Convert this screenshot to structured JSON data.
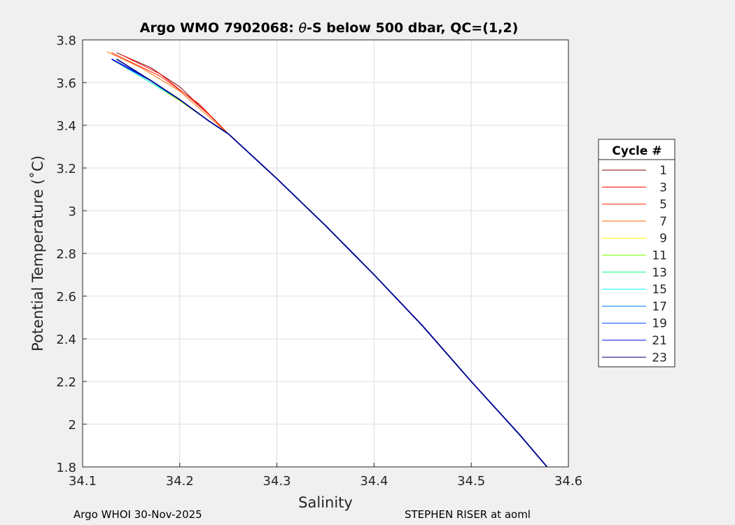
{
  "chart_data": {
    "type": "line",
    "title_pre": "Argo WMO 7902068: ",
    "title_theta": "θ",
    "title_post": "-S below 500 dbar,  QC=(1,2)",
    "xlabel": "Salinity",
    "ylabel": "Potential Temperature (˚C)",
    "xlim": [
      34.1,
      34.6
    ],
    "ylim": [
      1.8,
      3.8
    ],
    "xticks": [
      "34.1",
      "34.2",
      "34.3",
      "34.4",
      "34.5",
      "34.6"
    ],
    "yticks": [
      "1.8",
      "2",
      "2.2",
      "2.4",
      "2.6",
      "2.8",
      "3",
      "3.2",
      "3.4",
      "3.6",
      "3.8"
    ],
    "grid": true,
    "legend_title": "Cycle #",
    "legend_position": "outside-right",
    "tail": [
      [
        34.25,
        3.36
      ],
      [
        34.3,
        3.15
      ],
      [
        34.35,
        2.93
      ],
      [
        34.4,
        2.7
      ],
      [
        34.45,
        2.46
      ],
      [
        34.5,
        2.2
      ],
      [
        34.55,
        1.95
      ],
      [
        34.578,
        1.8
      ]
    ],
    "series": [
      {
        "name": "1",
        "color": "#800000",
        "head": [
          [
            34.135,
            3.74
          ],
          [
            34.17,
            3.67
          ],
          [
            34.2,
            3.58
          ],
          [
            34.23,
            3.45
          ]
        ]
      },
      {
        "name": "3",
        "color": "#ff0000",
        "head": [
          [
            34.14,
            3.73
          ],
          [
            34.18,
            3.64
          ],
          [
            34.21,
            3.53
          ],
          [
            34.235,
            3.43
          ]
        ]
      },
      {
        "name": "5",
        "color": "#ff2000",
        "head": [
          [
            34.13,
            3.74
          ],
          [
            34.18,
            3.63
          ],
          [
            34.22,
            3.5
          ]
        ]
      },
      {
        "name": "7",
        "color": "#ff6a00",
        "head": [
          [
            34.125,
            3.745
          ],
          [
            34.16,
            3.67
          ],
          [
            34.2,
            3.56
          ],
          [
            34.23,
            3.44
          ]
        ]
      },
      {
        "name": "9",
        "color": "#ffff00",
        "head": [
          [
            34.132,
            3.705
          ],
          [
            34.17,
            3.6
          ],
          [
            34.2,
            3.515
          ],
          [
            34.23,
            3.42
          ]
        ]
      },
      {
        "name": "11",
        "color": "#80ff00",
        "head": [
          [
            34.131,
            3.705
          ],
          [
            34.17,
            3.6
          ],
          [
            34.2,
            3.515
          ],
          [
            34.23,
            3.42
          ]
        ]
      },
      {
        "name": "13",
        "color": "#00ff80",
        "head": [
          [
            34.13,
            3.71
          ],
          [
            34.17,
            3.6
          ],
          [
            34.2,
            3.52
          ],
          [
            34.23,
            3.42
          ]
        ]
      },
      {
        "name": "15",
        "color": "#00ffff",
        "head": [
          [
            34.13,
            3.71
          ],
          [
            34.17,
            3.6
          ],
          [
            34.2,
            3.52
          ],
          [
            34.23,
            3.42
          ]
        ]
      },
      {
        "name": "17",
        "color": "#0080ff",
        "head": [
          [
            34.13,
            3.71
          ],
          [
            34.17,
            3.61
          ],
          [
            34.2,
            3.52
          ],
          [
            34.23,
            3.42
          ]
        ]
      },
      {
        "name": "19",
        "color": "#0040ff",
        "head": [
          [
            34.13,
            3.71
          ],
          [
            34.17,
            3.61
          ],
          [
            34.2,
            3.52
          ],
          [
            34.23,
            3.42
          ]
        ]
      },
      {
        "name": "21",
        "color": "#0000ff",
        "head": [
          [
            34.13,
            3.71
          ],
          [
            34.17,
            3.61
          ],
          [
            34.2,
            3.52
          ],
          [
            34.23,
            3.42
          ]
        ]
      },
      {
        "name": "23",
        "color": "#000080",
        "head": [
          [
            34.135,
            3.71
          ],
          [
            34.17,
            3.61
          ],
          [
            34.2,
            3.52
          ],
          [
            34.23,
            3.42
          ]
        ]
      }
    ]
  },
  "footer": {
    "left": "Argo WHOI 30-Nov-2025",
    "right": "STEPHEN RISER at aoml"
  }
}
